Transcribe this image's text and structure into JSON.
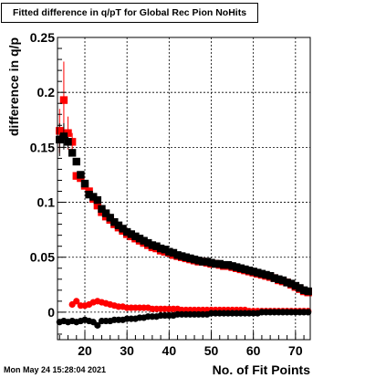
{
  "chart_data": {
    "type": "scatter",
    "title": "Fitted difference in q/pT for Global Rec Pion NoHits",
    "xlabel": "No. of Fit Points",
    "ylabel": "difference in q/p",
    "xlim": [
      13.5,
      73.5
    ],
    "ylim": [
      -0.025,
      0.25
    ],
    "x_ticks": [
      "20",
      "30",
      "40",
      "50",
      "60",
      "70"
    ],
    "y_ticks": [
      "0",
      "0.05",
      "0.1",
      "0.15",
      "0.2",
      "0.25"
    ],
    "grid": true,
    "series": [
      {
        "color": "#ff0000",
        "marker": "square",
        "points": [
          [
            14,
            0.165
          ],
          [
            15,
            0.193
          ],
          [
            16,
            0.163
          ],
          [
            17,
            0.155
          ],
          [
            18,
            0.124
          ],
          [
            19,
            0.122
          ],
          [
            20,
            0.115
          ],
          [
            21,
            0.11
          ],
          [
            22,
            0.103
          ],
          [
            23,
            0.097
          ],
          [
            24,
            0.091
          ],
          [
            25,
            0.087
          ],
          [
            26,
            0.084
          ],
          [
            27,
            0.08
          ],
          [
            28,
            0.077
          ],
          [
            29,
            0.074
          ],
          [
            30,
            0.071
          ],
          [
            31,
            0.069
          ],
          [
            32,
            0.067
          ],
          [
            33,
            0.065
          ],
          [
            34,
            0.063
          ],
          [
            35,
            0.061
          ],
          [
            36,
            0.059
          ],
          [
            37,
            0.058
          ],
          [
            38,
            0.056
          ],
          [
            39,
            0.055
          ],
          [
            40,
            0.054
          ],
          [
            41,
            0.052
          ],
          [
            42,
            0.051
          ],
          [
            43,
            0.05
          ],
          [
            44,
            0.049
          ],
          [
            45,
            0.048
          ],
          [
            46,
            0.047
          ],
          [
            47,
            0.046
          ],
          [
            48,
            0.046
          ],
          [
            49,
            0.045
          ],
          [
            50,
            0.044
          ],
          [
            51,
            0.044
          ],
          [
            52,
            0.043
          ],
          [
            53,
            0.042
          ],
          [
            54,
            0.042
          ],
          [
            55,
            0.041
          ],
          [
            56,
            0.04
          ],
          [
            57,
            0.039
          ],
          [
            58,
            0.038
          ],
          [
            59,
            0.037
          ],
          [
            60,
            0.036
          ],
          [
            61,
            0.035
          ],
          [
            62,
            0.034
          ],
          [
            63,
            0.033
          ],
          [
            64,
            0.032
          ],
          [
            65,
            0.031
          ],
          [
            66,
            0.029
          ],
          [
            67,
            0.028
          ],
          [
            68,
            0.027
          ],
          [
            69,
            0.025
          ],
          [
            70,
            0.023
          ],
          [
            71,
            0.021
          ],
          [
            72,
            0.019
          ],
          [
            73,
            0.018
          ]
        ],
        "errors": [
          [
            14,
            0.02
          ],
          [
            15,
            0.035
          ],
          [
            16,
            0.015
          ],
          [
            17,
            0.008
          ]
        ]
      },
      {
        "color": "#000000",
        "marker": "square",
        "points": [
          [
            14,
            0.157
          ],
          [
            15,
            0.16
          ],
          [
            16,
            0.155
          ],
          [
            17,
            0.145
          ],
          [
            18,
            0.137
          ],
          [
            19,
            0.125
          ],
          [
            20,
            0.117
          ],
          [
            21,
            0.107
          ],
          [
            22,
            0.105
          ],
          [
            23,
            0.102
          ],
          [
            24,
            0.094
          ],
          [
            25,
            0.09
          ],
          [
            26,
            0.086
          ],
          [
            27,
            0.082
          ],
          [
            28,
            0.079
          ],
          [
            29,
            0.076
          ],
          [
            30,
            0.073
          ],
          [
            31,
            0.071
          ],
          [
            32,
            0.069
          ],
          [
            33,
            0.067
          ],
          [
            34,
            0.065
          ],
          [
            35,
            0.063
          ],
          [
            36,
            0.061
          ],
          [
            37,
            0.06
          ],
          [
            38,
            0.058
          ],
          [
            39,
            0.057
          ],
          [
            40,
            0.055
          ],
          [
            41,
            0.054
          ],
          [
            42,
            0.052
          ],
          [
            43,
            0.051
          ],
          [
            44,
            0.05
          ],
          [
            45,
            0.049
          ],
          [
            46,
            0.048
          ],
          [
            47,
            0.047
          ],
          [
            48,
            0.046
          ],
          [
            49,
            0.046
          ],
          [
            50,
            0.045
          ],
          [
            51,
            0.044
          ],
          [
            52,
            0.044
          ],
          [
            53,
            0.043
          ],
          [
            54,
            0.043
          ],
          [
            55,
            0.042
          ],
          [
            56,
            0.041
          ],
          [
            57,
            0.04
          ],
          [
            58,
            0.039
          ],
          [
            59,
            0.038
          ],
          [
            60,
            0.037
          ],
          [
            61,
            0.036
          ],
          [
            62,
            0.035
          ],
          [
            63,
            0.034
          ],
          [
            64,
            0.033
          ],
          [
            65,
            0.031
          ],
          [
            66,
            0.03
          ],
          [
            67,
            0.029
          ],
          [
            68,
            0.027
          ],
          [
            69,
            0.026
          ],
          [
            70,
            0.024
          ],
          [
            71,
            0.022
          ],
          [
            72,
            0.02
          ],
          [
            73,
            0.019
          ]
        ],
        "errors": [
          [
            14,
            0.015
          ],
          [
            15,
            0.012
          ],
          [
            16,
            0.006
          ]
        ]
      },
      {
        "color": "#ff0000",
        "marker": "circle",
        "points": [
          [
            17,
            0.007
          ],
          [
            18,
            0.01
          ],
          [
            19,
            0.006
          ],
          [
            20,
            0.006
          ],
          [
            21,
            0.007
          ],
          [
            22,
            0.009
          ],
          [
            23,
            0.01
          ],
          [
            24,
            0.009
          ],
          [
            25,
            0.008
          ],
          [
            26,
            0.007
          ],
          [
            27,
            0.006
          ],
          [
            28,
            0.005
          ],
          [
            29,
            0.005
          ],
          [
            30,
            0.004
          ],
          [
            31,
            0.004
          ],
          [
            32,
            0.004
          ],
          [
            33,
            0.004
          ],
          [
            34,
            0.004
          ],
          [
            35,
            0.004
          ],
          [
            36,
            0.003
          ],
          [
            37,
            0.003
          ],
          [
            38,
            0.003
          ],
          [
            39,
            0.003
          ],
          [
            40,
            0.003
          ],
          [
            41,
            0.003
          ],
          [
            42,
            0.003
          ],
          [
            43,
            0.002
          ],
          [
            44,
            0.002
          ],
          [
            45,
            0.002
          ],
          [
            46,
            0.002
          ],
          [
            47,
            0.002
          ],
          [
            48,
            0.002
          ],
          [
            49,
            0.002
          ],
          [
            50,
            0.002
          ],
          [
            51,
            0.002
          ],
          [
            52,
            0.002
          ],
          [
            53,
            0.002
          ],
          [
            54,
            0.002
          ],
          [
            55,
            0.002
          ],
          [
            56,
            0.002
          ],
          [
            57,
            0.002
          ],
          [
            58,
            0.002
          ],
          [
            59,
            0.001
          ],
          [
            60,
            0.001
          ],
          [
            61,
            0.001
          ],
          [
            62,
            0.001
          ],
          [
            63,
            0.001
          ],
          [
            64,
            0.001
          ],
          [
            65,
            0.001
          ],
          [
            66,
            0.001
          ],
          [
            67,
            0.001
          ],
          [
            68,
            0.001
          ],
          [
            69,
            0.001
          ],
          [
            70,
            0.001
          ],
          [
            71,
            0.001
          ],
          [
            72,
            0.001
          ],
          [
            73,
            0.001
          ]
        ]
      },
      {
        "color": "#000000",
        "marker": "circle",
        "points": [
          [
            14,
            -0.009
          ],
          [
            15,
            -0.008
          ],
          [
            16,
            -0.009
          ],
          [
            17,
            -0.008
          ],
          [
            18,
            -0.009
          ],
          [
            19,
            -0.008
          ],
          [
            20,
            -0.007
          ],
          [
            21,
            -0.008
          ],
          [
            22,
            -0.009
          ],
          [
            23,
            -0.012
          ],
          [
            24,
            -0.008
          ],
          [
            25,
            -0.008
          ],
          [
            26,
            -0.008
          ],
          [
            27,
            -0.007
          ],
          [
            28,
            -0.007
          ],
          [
            29,
            -0.007
          ],
          [
            30,
            -0.006
          ],
          [
            31,
            -0.006
          ],
          [
            32,
            -0.006
          ],
          [
            33,
            -0.005
          ],
          [
            34,
            -0.005
          ],
          [
            35,
            -0.004
          ],
          [
            36,
            -0.004
          ],
          [
            37,
            -0.004
          ],
          [
            38,
            -0.003
          ],
          [
            39,
            -0.003
          ],
          [
            40,
            -0.003
          ],
          [
            41,
            -0.003
          ],
          [
            42,
            -0.002
          ],
          [
            43,
            -0.002
          ],
          [
            44,
            -0.002
          ],
          [
            45,
            -0.002
          ],
          [
            46,
            -0.002
          ],
          [
            47,
            -0.002
          ],
          [
            48,
            -0.002
          ],
          [
            49,
            -0.002
          ],
          [
            50,
            -0.001
          ],
          [
            51,
            -0.001
          ],
          [
            52,
            -0.001
          ],
          [
            53,
            -0.001
          ],
          [
            54,
            -0.001
          ],
          [
            55,
            -0.001
          ],
          [
            56,
            -0.001
          ],
          [
            57,
            -0.001
          ],
          [
            58,
            -0.001
          ],
          [
            59,
            -0.001
          ],
          [
            60,
            -0.001
          ],
          [
            61,
            -0.001
          ],
          [
            62,
            0.0
          ],
          [
            63,
            0.0
          ],
          [
            64,
            0.0
          ],
          [
            65,
            0.0
          ],
          [
            66,
            0.0
          ],
          [
            67,
            0.0
          ],
          [
            68,
            0.0
          ],
          [
            69,
            0.0
          ],
          [
            70,
            0.0
          ],
          [
            71,
            0.0
          ],
          [
            72,
            0.0
          ],
          [
            73,
            0.0
          ]
        ]
      }
    ]
  },
  "timestamp": "Mon May 24 15:28:04 2021"
}
